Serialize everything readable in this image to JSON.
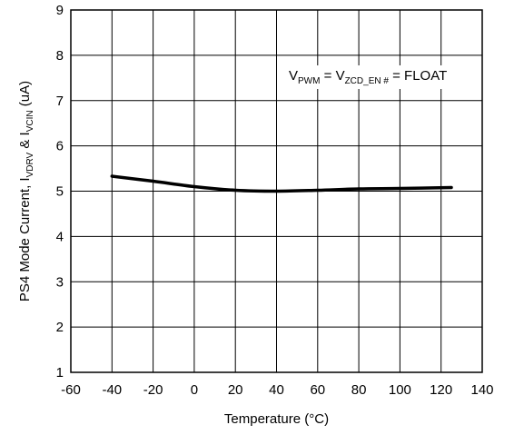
{
  "chart_data": {
    "type": "line",
    "title": "",
    "xlabel": "Temperature (°C)",
    "ylabel": {
      "prefix": "PS4 Mode Current, I",
      "sub1": "VDRV",
      "mid": " & I",
      "sub2": "VCIN",
      "suffix": " (uA)"
    },
    "xlim": [
      -60,
      140
    ],
    "ylim": [
      1,
      9
    ],
    "xticks": [
      -60,
      -40,
      -20,
      0,
      20,
      40,
      60,
      80,
      100,
      120,
      140
    ],
    "yticks": [
      1,
      2,
      3,
      4,
      5,
      6,
      7,
      8,
      9
    ],
    "grid": true,
    "annotation": {
      "v1": "V",
      "sub1": "PWM",
      "eq": " = V",
      "sub2": "ZCD_EN #",
      "rest": " = FLOAT"
    },
    "series": [
      {
        "color": "#000000",
        "x": [
          -40,
          -20,
          0,
          20,
          40,
          60,
          80,
          100,
          125
        ],
        "y": [
          5.33,
          5.22,
          5.1,
          5.02,
          5.0,
          5.02,
          5.05,
          5.06,
          5.08
        ]
      }
    ]
  }
}
